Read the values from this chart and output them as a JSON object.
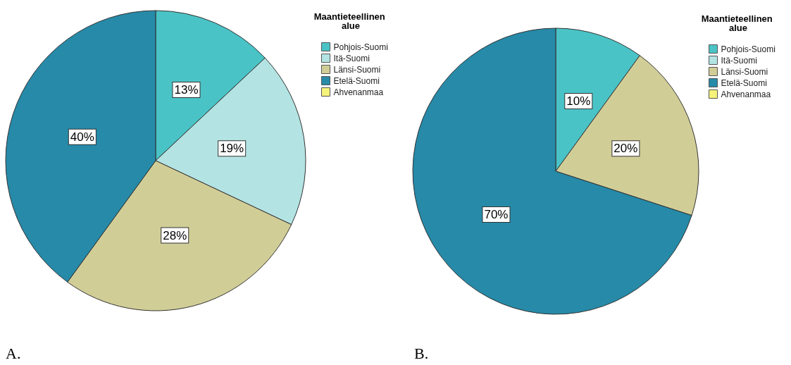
{
  "chart_data": [
    {
      "type": "pie",
      "legend_title": "Maantieteellinen alue",
      "categories": [
        "Pohjois-Suomi",
        "Itä-Suomi",
        "Länsi-Suomi",
        "Etelä-Suomi",
        "Ahvenanmaa"
      ],
      "values": [
        13,
        19,
        28,
        40,
        0
      ],
      "colors": [
        "#4ac3c6",
        "#b3e3e3",
        "#d1cd97",
        "#268aa8",
        "#f5f37a"
      ],
      "value_labels": [
        "13%",
        "19%",
        "28%",
        "40%",
        null
      ],
      "legend": "top right",
      "annotations": [
        "A."
      ]
    },
    {
      "type": "pie",
      "legend_title": "Maantieteellinen alue",
      "categories": [
        "Pohjois-Suomi",
        "Itä-Suomi",
        "Länsi-Suomi",
        "Etelä-Suomi",
        "Ahvenanmaa"
      ],
      "values": [
        10,
        0,
        20,
        70,
        0
      ],
      "colors": [
        "#4ac3c6",
        "#b3e3e3",
        "#d1cd97",
        "#268aa8",
        "#f5f37a"
      ],
      "value_labels": [
        "10%",
        null,
        "20%",
        "70%",
        null
      ],
      "legend": "top right",
      "annotations": [
        "B."
      ]
    }
  ]
}
